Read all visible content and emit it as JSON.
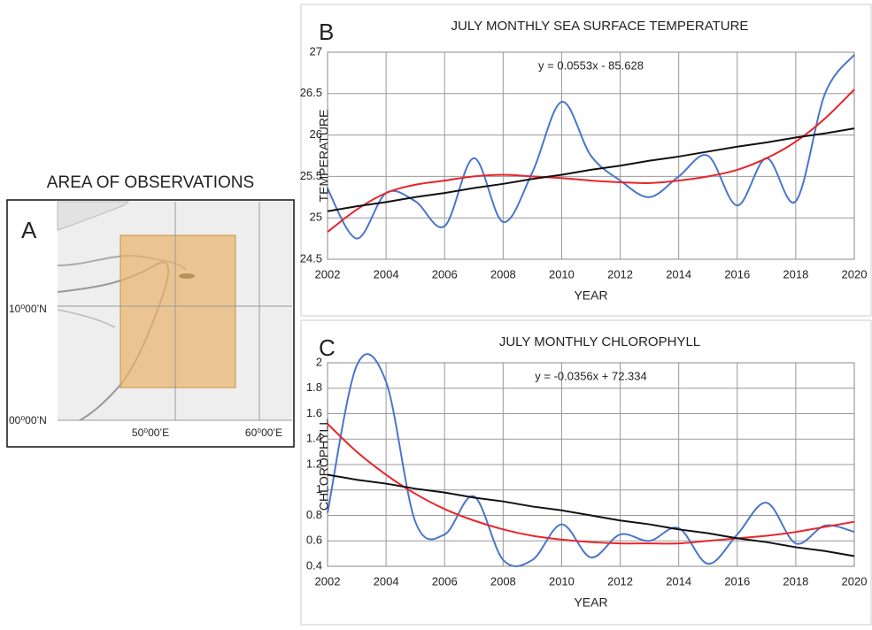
{
  "map": {
    "title": "AREA OF OBSERVATIONS",
    "panel_label": "A",
    "lat_labels": [
      "10⁰00’N",
      "00⁰00’N"
    ],
    "lon_labels": [
      "50⁰00’E",
      "60⁰00’E"
    ]
  },
  "chart_data": [
    {
      "type": "line",
      "panel_label": "B",
      "title": "JULY MONTHLY SEA SURFACE TEMPERATURE",
      "xlabel": "YEAR",
      "ylabel": "TEMPERATURE",
      "annotation": "y = 0.0553x - 85.628",
      "x": [
        2002,
        2003,
        2004,
        2005,
        2006,
        2007,
        2008,
        2009,
        2010,
        2011,
        2012,
        2013,
        2014,
        2015,
        2016,
        2017,
        2018,
        2019,
        2020
      ],
      "series": [
        {
          "color": "#4a76c9",
          "smooth": true,
          "values": [
            25.35,
            24.75,
            25.3,
            25.2,
            24.9,
            25.72,
            24.95,
            25.55,
            26.4,
            25.75,
            25.45,
            25.25,
            25.5,
            25.75,
            25.15,
            25.72,
            25.2,
            26.5,
            26.97
          ]
        },
        {
          "color": "#e8252a",
          "smooth": true,
          "values": [
            24.83,
            25.1,
            25.3,
            25.4,
            25.45,
            25.5,
            25.52,
            25.5,
            25.48,
            25.45,
            25.43,
            25.42,
            25.45,
            25.5,
            25.58,
            25.72,
            25.92,
            26.2,
            26.55
          ]
        },
        {
          "color": "#111111",
          "smooth": false,
          "values": [
            25.08,
            25.14,
            25.19,
            25.25,
            25.3,
            25.36,
            25.41,
            25.47,
            25.52,
            25.58,
            25.63,
            25.69,
            25.74,
            25.8,
            25.86,
            25.91,
            25.97,
            26.02,
            26.08
          ]
        }
      ],
      "xlim": [
        2002,
        2020
      ],
      "ylim": [
        24.5,
        27
      ],
      "xticks": [
        2002,
        2004,
        2006,
        2008,
        2010,
        2012,
        2014,
        2016,
        2018,
        2020
      ],
      "yticks": [
        24.5,
        25,
        25.5,
        26,
        26.5,
        27
      ],
      "grid": true
    },
    {
      "type": "line",
      "panel_label": "C",
      "title": "JULY MONTHLY CHLOROPHYLL",
      "xlabel": "YEAR",
      "ylabel": "CHLOROPHYLL",
      "annotation": "y = -0.0356x + 72.334",
      "x": [
        2002,
        2003,
        2004,
        2005,
        2006,
        2007,
        2008,
        2009,
        2010,
        2011,
        2012,
        2013,
        2014,
        2015,
        2016,
        2017,
        2018,
        2019,
        2020
      ],
      "series": [
        {
          "color": "#4a76c9",
          "smooth": true,
          "values": [
            0.82,
            1.98,
            1.85,
            0.75,
            0.65,
            0.95,
            0.45,
            0.45,
            0.73,
            0.47,
            0.65,
            0.6,
            0.7,
            0.42,
            0.65,
            0.9,
            0.58,
            0.72,
            0.67
          ]
        },
        {
          "color": "#e8252a",
          "smooth": true,
          "values": [
            1.52,
            1.3,
            1.12,
            0.97,
            0.85,
            0.76,
            0.69,
            0.64,
            0.61,
            0.59,
            0.58,
            0.58,
            0.58,
            0.6,
            0.62,
            0.64,
            0.67,
            0.71,
            0.75
          ]
        },
        {
          "color": "#111111",
          "smooth": false,
          "values": [
            1.12,
            1.08,
            1.05,
            1.01,
            0.98,
            0.94,
            0.91,
            0.87,
            0.84,
            0.8,
            0.76,
            0.73,
            0.69,
            0.66,
            0.62,
            0.59,
            0.55,
            0.52,
            0.48
          ]
        }
      ],
      "xlim": [
        2002,
        2020
      ],
      "ylim": [
        0.4,
        2
      ],
      "xticks": [
        2002,
        2004,
        2006,
        2008,
        2010,
        2012,
        2014,
        2016,
        2018,
        2020
      ],
      "yticks": [
        0.4,
        0.6,
        0.8,
        1,
        1.2,
        1.4,
        1.6,
        1.8,
        2
      ],
      "grid": true
    }
  ]
}
